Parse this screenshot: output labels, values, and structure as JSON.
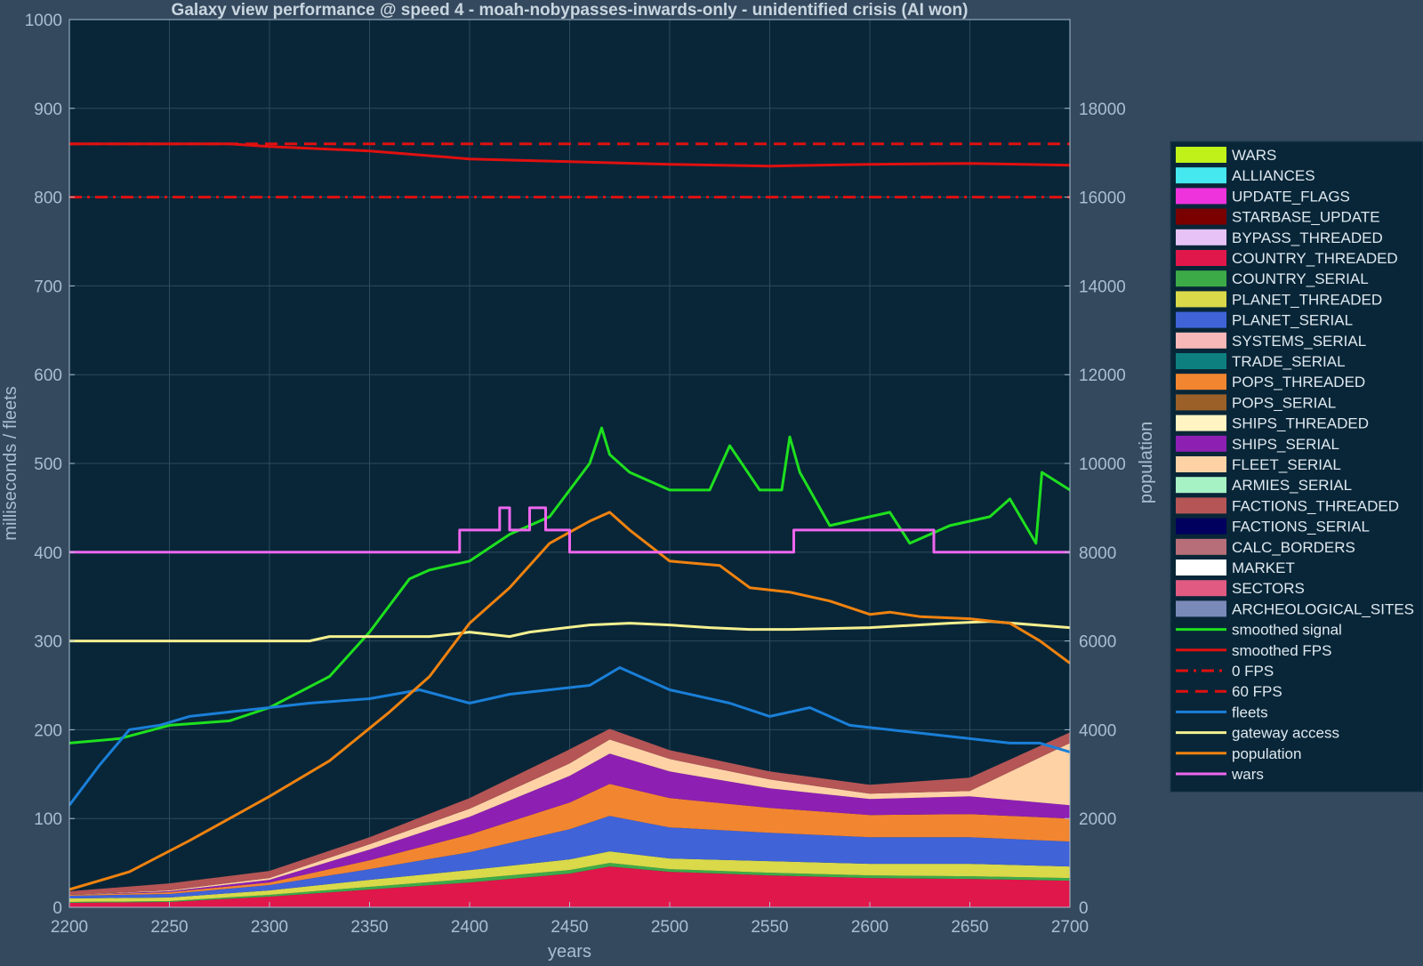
{
  "colors": {
    "page_bg": "#34495e",
    "plot_bg": "#082638",
    "grid": "#2c4a5e",
    "text": "#a9bfd0",
    "title": "#c9d6e0",
    "legend_bg": "#082638"
  },
  "chart_data": {
    "type": "area",
    "title": "Galaxy view performance @ speed 4 - moah-nobypasses-inwards-only - unidentified crisis (AI won)",
    "xlabel": "years",
    "ylabel_left": "milliseconds / fleets",
    "ylabel_right": "population",
    "xlim": [
      2200,
      2700
    ],
    "ylim_left": [
      0,
      1000
    ],
    "ylim_right": [
      0,
      20000
    ],
    "x_ticks": [
      2200,
      2250,
      2300,
      2350,
      2400,
      2450,
      2500,
      2550,
      2600,
      2650,
      2700
    ],
    "y_ticks_left": [
      0,
      100,
      200,
      300,
      400,
      500,
      600,
      700,
      800,
      900,
      1000
    ],
    "y_ticks_right": [
      0,
      2000,
      4000,
      6000,
      8000,
      10000,
      12000,
      14000,
      16000,
      18000
    ],
    "grid": true,
    "legend_position": "right",
    "stack_x": [
      2200,
      2250,
      2300,
      2350,
      2400,
      2450,
      2470,
      2500,
      2550,
      2600,
      2650,
      2700
    ],
    "stacked_series": [
      {
        "name": "COUNTRY_THREADED",
        "color": "#e0174a",
        "values": [
          5,
          6,
          12,
          20,
          28,
          38,
          46,
          40,
          36,
          33,
          32,
          30
        ]
      },
      {
        "name": "COUNTRY_SERIAL",
        "color": "#3daa48",
        "values": [
          1,
          1,
          2,
          3,
          4,
          4,
          4,
          3,
          3,
          3,
          3,
          3
        ]
      },
      {
        "name": "PLANET_THREADED",
        "color": "#d9d94a",
        "values": [
          4,
          4,
          5,
          8,
          10,
          12,
          13,
          12,
          13,
          13,
          14,
          13
        ]
      },
      {
        "name": "PLANET_SERIAL",
        "color": "#4063d8",
        "values": [
          3,
          4,
          6,
          12,
          20,
          34,
          40,
          35,
          32,
          30,
          30,
          28
        ]
      },
      {
        "name": "POPS_THREADED",
        "color": "#f28530",
        "values": [
          1,
          2,
          3,
          10,
          20,
          30,
          36,
          33,
          28,
          25,
          26,
          26
        ]
      },
      {
        "name": "SHIPS_SERIAL",
        "color": "#8e1fb3",
        "values": [
          0,
          1,
          3,
          12,
          20,
          30,
          34,
          30,
          22,
          18,
          20,
          15
        ]
      },
      {
        "name": "FLEET_SERIAL",
        "color": "#ffd2a6",
        "values": [
          0,
          1,
          2,
          6,
          9,
          14,
          16,
          14,
          10,
          6,
          6,
          70
        ]
      },
      {
        "name": "FACTIONS_THREADED",
        "color": "#b55555",
        "values": [
          4,
          8,
          8,
          8,
          12,
          16,
          12,
          10,
          9,
          10,
          15,
          12
        ]
      }
    ],
    "line_series": [
      {
        "name": "smoothed signal",
        "color": "#1ee01e",
        "x": [
          2200,
          2225,
          2250,
          2280,
          2300,
          2330,
          2350,
          2370,
          2380,
          2400,
          2420,
          2440,
          2460,
          2466,
          2470,
          2480,
          2500,
          2520,
          2530,
          2545,
          2556,
          2560,
          2565,
          2580,
          2600,
          2610,
          2620,
          2640,
          2660,
          2670,
          2683,
          2686,
          2700
        ],
        "y": [
          185,
          190,
          205,
          210,
          225,
          260,
          310,
          370,
          380,
          390,
          420,
          440,
          500,
          540,
          510,
          490,
          470,
          470,
          520,
          470,
          470,
          530,
          490,
          430,
          440,
          445,
          410,
          430,
          440,
          460,
          410,
          490,
          470
        ]
      },
      {
        "name": "smoothed FPS",
        "color": "#e01010",
        "x": [
          2200,
          2280,
          2300,
          2350,
          2400,
          2450,
          2500,
          2550,
          2600,
          2650,
          2700
        ],
        "y": [
          860,
          860,
          857,
          852,
          843,
          840,
          837,
          835,
          837,
          838,
          836
        ]
      },
      {
        "name": "0 FPS",
        "color": "#e01010",
        "x": [
          2200,
          2700
        ],
        "y": [
          800,
          800
        ]
      },
      {
        "name": "60 FPS",
        "color": "#e01010",
        "x": [
          2200,
          2700
        ],
        "y": [
          860,
          860
        ]
      },
      {
        "name": "fleets",
        "color": "#1a7fd8",
        "x": [
          2200,
          2215,
          2230,
          2245,
          2260,
          2280,
          2300,
          2320,
          2350,
          2375,
          2400,
          2420,
          2440,
          2460,
          2475,
          2500,
          2530,
          2550,
          2570,
          2590,
          2610,
          2630,
          2650,
          2670,
          2685,
          2700
        ],
        "y": [
          115,
          160,
          200,
          205,
          215,
          220,
          225,
          230,
          235,
          245,
          230,
          240,
          245,
          250,
          270,
          245,
          230,
          215,
          225,
          205,
          200,
          195,
          190,
          185,
          185,
          175
        ]
      },
      {
        "name": "gateway access",
        "color": "#f5f090",
        "x": [
          2200,
          2320,
          2330,
          2380,
          2400,
          2420,
          2430,
          2460,
          2480,
          2500,
          2520,
          2540,
          2560,
          2600,
          2640,
          2660,
          2700
        ],
        "y": [
          300,
          300,
          305,
          305,
          310,
          305,
          310,
          318,
          320,
          318,
          315,
          313,
          313,
          315,
          320,
          322,
          315
        ]
      },
      {
        "name": "population",
        "color": "#f0820f",
        "x": [
          2200,
          2230,
          2260,
          2300,
          2330,
          2360,
          2380,
          2400,
          2420,
          2440,
          2460,
          2470,
          2480,
          2500,
          2525,
          2540,
          2560,
          2580,
          2600,
          2610,
          2625,
          2650,
          2670,
          2685,
          2700
        ],
        "y": [
          400,
          800,
          1500,
          2500,
          3300,
          4400,
          5200,
          6400,
          7200,
          8200,
          8700,
          8900,
          8500,
          7800,
          7700,
          7200,
          7100,
          6900,
          6600,
          6650,
          6550,
          6500,
          6400,
          6000,
          5500
        ]
      },
      {
        "name": "wars",
        "color": "#ee66ee",
        "x": [
          2200,
          2395,
          2395,
          2415,
          2415,
          2420,
          2420,
          2430,
          2430,
          2438,
          2438,
          2450,
          2450,
          2562,
          2562,
          2632,
          2632,
          2700
        ],
        "y": [
          400,
          400,
          425,
          425,
          450,
          450,
          425,
          425,
          450,
          450,
          425,
          425,
          400,
          400,
          425,
          425,
          400,
          400
        ]
      }
    ],
    "legend_entries": [
      {
        "label": "WARS",
        "kind": "patch",
        "color": "#c0f21a"
      },
      {
        "label": "ALLIANCES",
        "kind": "patch",
        "color": "#44e8ee"
      },
      {
        "label": "UPDATE_FLAGS",
        "kind": "patch",
        "color": "#ee33dd"
      },
      {
        "label": "STARBASE_UPDATE",
        "kind": "patch",
        "color": "#7a0000"
      },
      {
        "label": "BYPASS_THREADED",
        "kind": "patch",
        "color": "#e6c2f7"
      },
      {
        "label": "COUNTRY_THREADED",
        "kind": "patch",
        "color": "#e0174a"
      },
      {
        "label": "COUNTRY_SERIAL",
        "kind": "patch",
        "color": "#3daa48"
      },
      {
        "label": "PLANET_THREADED",
        "kind": "patch",
        "color": "#d9d94a"
      },
      {
        "label": "PLANET_SERIAL",
        "kind": "patch",
        "color": "#4063d8"
      },
      {
        "label": "SYSTEMS_SERIAL",
        "kind": "patch",
        "color": "#f8b8b8"
      },
      {
        "label": "TRADE_SERIAL",
        "kind": "patch",
        "color": "#0e7f7f"
      },
      {
        "label": "POPS_THREADED",
        "kind": "patch",
        "color": "#f28530"
      },
      {
        "label": "POPS_SERIAL",
        "kind": "patch",
        "color": "#9a6028"
      },
      {
        "label": "SHIPS_THREADED",
        "kind": "patch",
        "color": "#fff4c2"
      },
      {
        "label": "SHIPS_SERIAL",
        "kind": "patch",
        "color": "#8e1fb3"
      },
      {
        "label": "FLEET_SERIAL",
        "kind": "patch",
        "color": "#ffd2a6"
      },
      {
        "label": "ARMIES_SERIAL",
        "kind": "patch",
        "color": "#a6f2c4"
      },
      {
        "label": "FACTIONS_THREADED",
        "kind": "patch",
        "color": "#b55555"
      },
      {
        "label": "FACTIONS_SERIAL",
        "kind": "patch",
        "color": "#02005e"
      },
      {
        "label": "CALC_BORDERS",
        "kind": "patch",
        "color": "#b86e78"
      },
      {
        "label": "MARKET",
        "kind": "patch",
        "color": "#ffffff"
      },
      {
        "label": "SECTORS",
        "kind": "patch",
        "color": "#e05a82"
      },
      {
        "label": "ARCHEOLOGICAL_SITES",
        "kind": "patch",
        "color": "#7a8ab8"
      },
      {
        "label": "smoothed signal",
        "kind": "line",
        "color": "#1ee01e",
        "dash": "solid"
      },
      {
        "label": "smoothed FPS",
        "kind": "line",
        "color": "#e01010",
        "dash": "solid"
      },
      {
        "label": "0 FPS",
        "kind": "line",
        "color": "#e01010",
        "dash": "dashdot"
      },
      {
        "label": "60 FPS",
        "kind": "line",
        "color": "#e01010",
        "dash": "dashed"
      },
      {
        "label": "fleets",
        "kind": "line",
        "color": "#1a7fd8",
        "dash": "solid"
      },
      {
        "label": "gateway access",
        "kind": "line",
        "color": "#f5f090",
        "dash": "solid"
      },
      {
        "label": "population",
        "kind": "line",
        "color": "#f0820f",
        "dash": "solid"
      },
      {
        "label": "wars",
        "kind": "line",
        "color": "#ee66ee",
        "dash": "solid"
      }
    ]
  }
}
